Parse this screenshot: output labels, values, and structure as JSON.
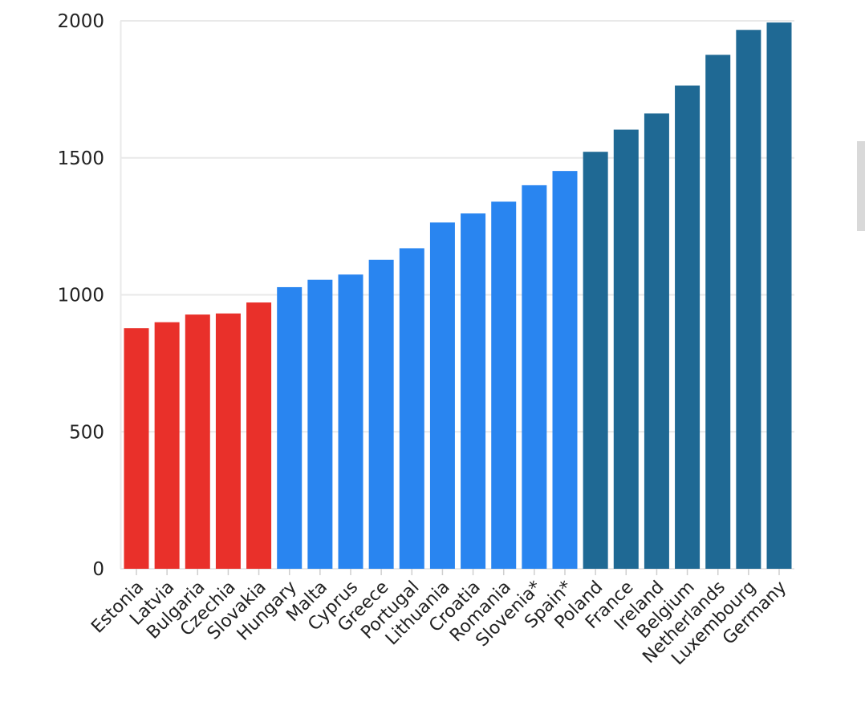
{
  "chart_data": {
    "type": "bar",
    "title": "",
    "xlabel": "",
    "ylabel": "",
    "ylim": [
      0,
      2000
    ],
    "yticks": [
      0,
      500,
      1000,
      1500,
      2000
    ],
    "grid": "horizontal",
    "categories": [
      "Estonia",
      "Latvia",
      "Bulgaria",
      "Czechia",
      "Slovakia",
      "Hungary",
      "Malta",
      "Cyprus",
      "Greece",
      "Portugal",
      "Lithuania",
      "Croatia",
      "Romania",
      "Slovenia*",
      "Spain*",
      "Poland",
      "France",
      "Ireland",
      "Belgium",
      "Netherlands",
      "Luxembourg",
      "Germany"
    ],
    "values": [
      878,
      900,
      928,
      932,
      972,
      1028,
      1055,
      1074,
      1128,
      1170,
      1264,
      1297,
      1340,
      1400,
      1452,
      1522,
      1603,
      1662,
      1764,
      1876,
      1967,
      1994
    ],
    "groups": [
      0,
      0,
      0,
      0,
      0,
      1,
      1,
      1,
      1,
      1,
      1,
      1,
      1,
      1,
      1,
      2,
      2,
      2,
      2,
      2,
      2,
      2
    ],
    "group_colors": [
      "#e9302a",
      "#2985f0",
      "#1f6994"
    ]
  }
}
